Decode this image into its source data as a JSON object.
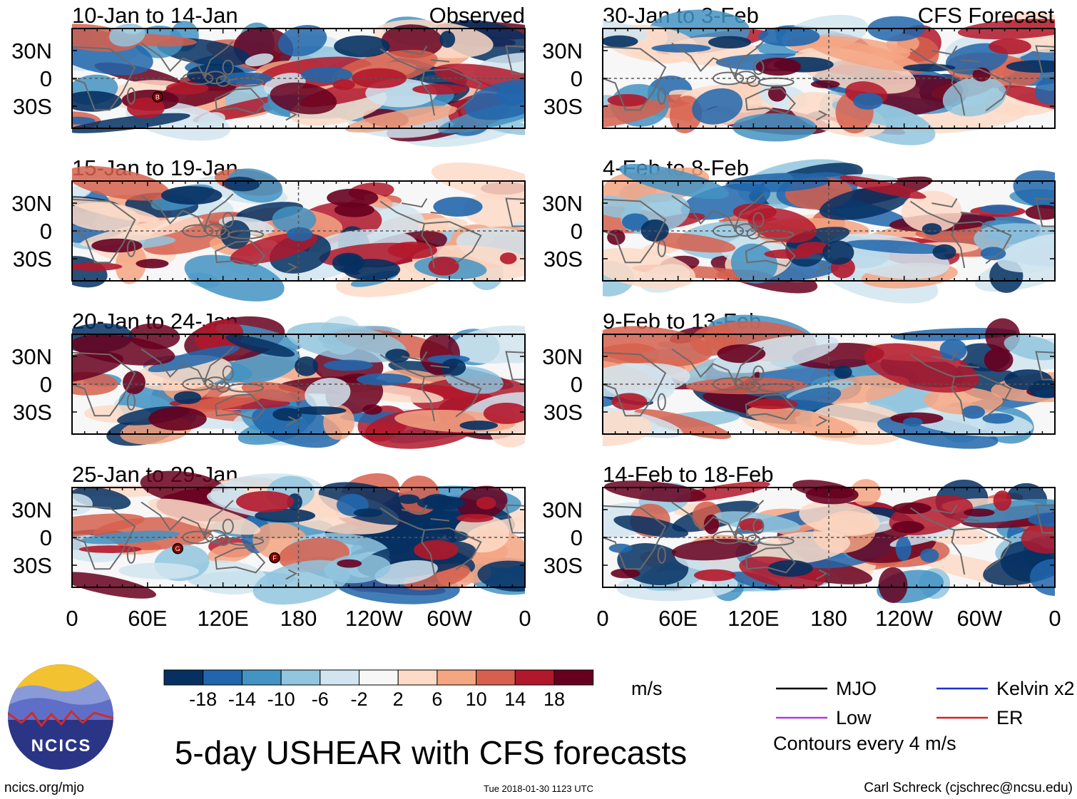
{
  "figure_title": "5-day USHEAR with CFS forecasts",
  "observed_label": "Observed",
  "forecast_label": "CFS Forecast",
  "chart_data": {
    "type": "heatmap",
    "variable": "USHEAR",
    "units": "m/s",
    "panels": [
      {
        "id": "obs1",
        "column": "Observed",
        "title": "10-Jan to 14-Jan"
      },
      {
        "id": "obs2",
        "column": "Observed",
        "title": "15-Jan to 19-Jan"
      },
      {
        "id": "obs3",
        "column": "Observed",
        "title": "20-Jan to 24-Jan"
      },
      {
        "id": "obs4",
        "column": "Observed",
        "title": "25-Jan to 29-Jan"
      },
      {
        "id": "fc1",
        "column": "CFS Forecast",
        "title": "30-Jan to 3-Feb"
      },
      {
        "id": "fc2",
        "column": "CFS Forecast",
        "title": "4-Feb to 8-Feb"
      },
      {
        "id": "fc3",
        "column": "CFS Forecast",
        "title": "9-Feb to 13-Feb"
      },
      {
        "id": "fc4",
        "column": "CFS Forecast",
        "title": "14-Feb to 18-Feb"
      }
    ],
    "lat_ticks": [
      "30N",
      "0",
      "30S"
    ],
    "lon_ticks": [
      "0",
      "60E",
      "120E",
      "180",
      "120W",
      "60W",
      "0"
    ],
    "colorbar": {
      "colors": [
        "#053061",
        "#2166ac",
        "#4393c3",
        "#92c5de",
        "#d1e5f0",
        "#f7f7f7",
        "#fddbc7",
        "#f4a582",
        "#d6604d",
        "#b2182b",
        "#67001f"
      ],
      "tick_labels": [
        "-18",
        "-14",
        "-10",
        "-6",
        "-2",
        "2",
        "6",
        "10",
        "14",
        "18"
      ],
      "units": "m/s"
    },
    "storm_markers": [
      {
        "panel": "obs1",
        "label": "B"
      },
      {
        "panel": "obs4",
        "label": "G"
      },
      {
        "panel": "obs4",
        "label": "F"
      }
    ],
    "legend": [
      {
        "label": "MJO",
        "color": "#000000"
      },
      {
        "label": "Kelvin x2",
        "color": "#1f2fd0"
      },
      {
        "label": "Low",
        "color": "#b13ae0"
      },
      {
        "label": "ER",
        "color": "#d42020"
      }
    ],
    "contour_note": "Contours every 4 m/s"
  },
  "footer": {
    "logo_text": "NCICS",
    "website": "ncics.org/mjo",
    "timestamp": "Tue 2018-01-30 1123 UTC",
    "author": "Carl Schreck (cjschrec@ncsu.edu)"
  }
}
